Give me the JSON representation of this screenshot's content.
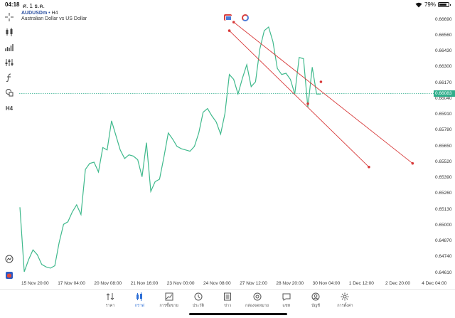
{
  "status": {
    "time": "04:18",
    "date": "ศ. 1 ธ.ค.",
    "battery": "79%"
  },
  "symbol": {
    "name": "AUDUSDm",
    "timeframe": "H4",
    "description": "Australian Dollar vs US Dollar"
  },
  "toolbar": {
    "items": [
      "crosshair-icon",
      "candles-icon",
      "indicators-icon",
      "settings-sliders-icon",
      "formula-icon",
      "shapes-icon",
      "timeframe-label"
    ],
    "timeframe_label": "H4"
  },
  "colors": {
    "line": "#3fb98c",
    "trendline": "#d83a3a",
    "current_price": "#2fae8b",
    "accent": "#2d6fd6"
  },
  "chart_data": {
    "type": "line",
    "symbol": "AUDUSDm",
    "timeframe": "H4",
    "current_price": "0.66083",
    "price_ticks": [
      "0.66690",
      "0.66560",
      "0.66430",
      "0.66300",
      "0.66170",
      "0.66040",
      "0.65910",
      "0.65780",
      "0.65650",
      "0.65520",
      "0.65390",
      "0.65260",
      "0.65130",
      "0.65000",
      "0.64870",
      "0.64740",
      "0.64610"
    ],
    "time_ticks": [
      "15 Nov 20:00",
      "17 Nov 04:00",
      "20 Nov 08:00",
      "21 Nov 16:00",
      "23 Nov 00:00",
      "24 Nov 08:00",
      "27 Nov 12:00",
      "28 Nov 20:00",
      "30 Nov 04:00",
      "1 Dec 12:00",
      "2 Dec 20:00",
      "4 Dec 04:00"
    ],
    "ylim": [
      0.6455,
      0.6677
    ],
    "series": [
      {
        "values": [
          0.6515,
          0.6462,
          0.6472,
          0.648,
          0.6476,
          0.6468,
          0.6466,
          0.6465,
          0.6467,
          0.6486,
          0.6501,
          0.6503,
          0.6511,
          0.6517,
          0.6509,
          0.6546,
          0.6551,
          0.6552,
          0.6544,
          0.6564,
          0.6562,
          0.6586,
          0.6574,
          0.6562,
          0.6555,
          0.6558,
          0.6557,
          0.6554,
          0.654,
          0.6568,
          0.6528,
          0.6536,
          0.6538,
          0.6556,
          0.6576,
          0.6571,
          0.6565,
          0.6563,
          0.6562,
          0.6561,
          0.6565,
          0.6576,
          0.6593,
          0.6596,
          0.659,
          0.6585,
          0.6575,
          0.6592,
          0.6624,
          0.662,
          0.6608,
          0.6621,
          0.6632,
          0.6614,
          0.6618,
          0.6645,
          0.666,
          0.6663,
          0.6651,
          0.6629,
          0.6624,
          0.6625,
          0.662,
          0.6608,
          0.6638,
          0.6637,
          0.6597,
          0.663,
          0.6608,
          0.6608
        ]
      }
    ],
    "trendlines": [
      {
        "start": {
          "x_index": 49,
          "y": 0.6667
        },
        "end": {
          "x_index": 90,
          "y": 0.6551
        },
        "visible_point": {
          "x_index": 69,
          "y": 0.6618
        }
      },
      {
        "start": {
          "x_index": 48,
          "y": 0.666
        },
        "end": {
          "x_index": 80,
          "y": 0.6548
        },
        "visible_point": {
          "x_index": 66,
          "y": 0.66
        }
      }
    ],
    "grid": false
  },
  "side_tools": [
    "history-chart-icon",
    "app-logo-icon"
  ],
  "tabs": [
    {
      "label": "ราคา",
      "icon": "quotes-icon",
      "active": false
    },
    {
      "label": "กราฟ",
      "icon": "chart-icon",
      "active": true
    },
    {
      "label": "การซื้อขาย",
      "icon": "trade-icon",
      "active": false
    },
    {
      "label": "ประวัติ",
      "icon": "history-icon",
      "active": false
    },
    {
      "label": "ข่าว",
      "icon": "news-icon",
      "active": false
    },
    {
      "label": "กล่องจดหมาย",
      "icon": "mail-icon",
      "active": false
    },
    {
      "label": "แชท",
      "icon": "chat-icon",
      "active": false
    },
    {
      "label": "บัญชี",
      "icon": "account-icon",
      "active": false
    },
    {
      "label": "การตั้งค่า",
      "icon": "settings-icon",
      "active": false
    }
  ]
}
